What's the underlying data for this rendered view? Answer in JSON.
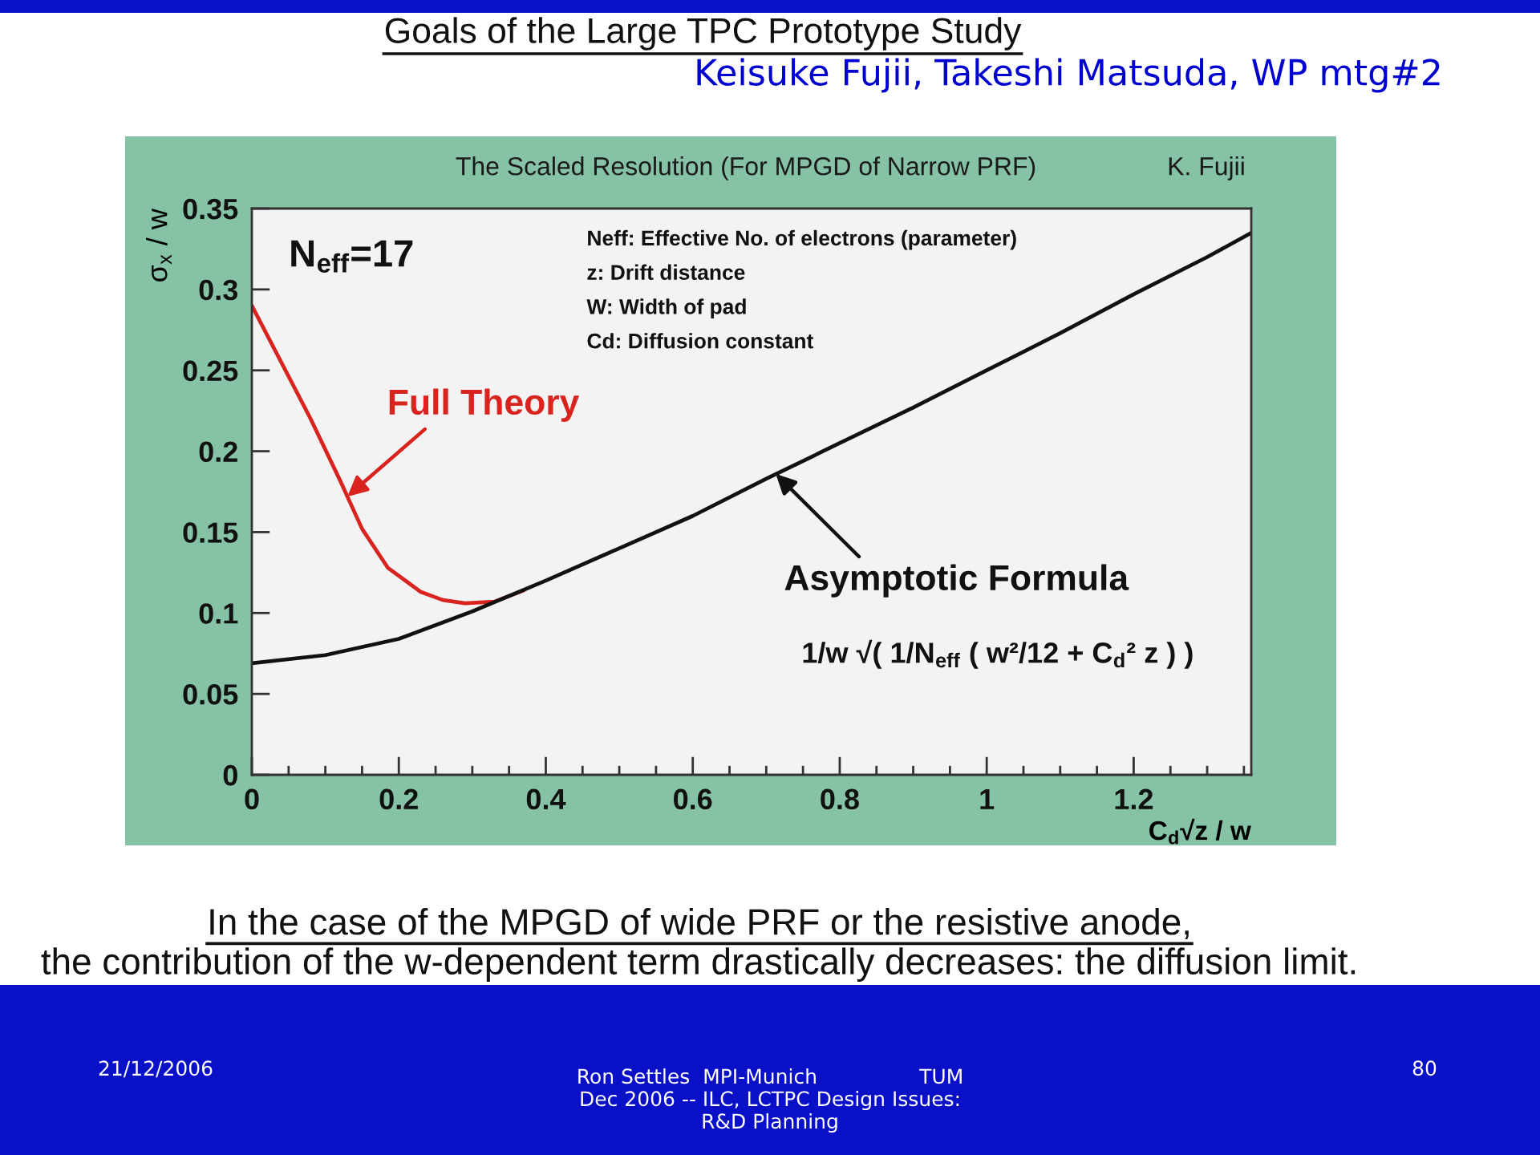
{
  "chart_data": {
    "type": "line",
    "title": "The Scaled Resolution (For MPGD of Narrow PRF)",
    "subtitle": "Keisuke Fujii, Takeshi Matsuda, WP mtg#2",
    "xlabel": "C$_{d}$√z / w",
    "ylabel": "σ$_{x}$ / w",
    "xlim": [
      0,
      1.36
    ],
    "ylim": [
      0,
      0.35
    ],
    "xticks": [
      0,
      0.2,
      0.4,
      0.6,
      0.8,
      1,
      1.2
    ],
    "yticks": [
      0,
      0.05,
      0.1,
      0.15,
      0.2,
      0.25,
      0.3,
      0.35
    ],
    "series": [
      {
        "color": "#d8231f",
        "x": [
          0,
          0.04,
          0.08,
          0.12,
          0.15,
          0.185,
          0.23,
          0.26,
          0.29,
          0.33,
          0.37
        ],
        "values": [
          0.29,
          0.255,
          0.22,
          0.182,
          0.152,
          0.128,
          0.113,
          0.108,
          0.106,
          0.107,
          0.114
        ]
      },
      {
        "color": "#111111",
        "x": [
          0,
          0.1,
          0.2,
          0.3,
          0.4,
          0.5,
          0.6,
          0.7,
          0.8,
          0.9,
          1,
          1.1,
          1.2,
          1.3,
          1.36
        ],
        "values": [
          0.069,
          0.074,
          0.084,
          0.101,
          0.12,
          0.14,
          0.16,
          0.183,
          0.205,
          0.227,
          0.25,
          0.273,
          0.297,
          0.32,
          0.335
        ]
      }
    ],
    "annotations": [
      "K. Fujii",
      "Goals of the Large TPC Prototype Study",
      "N$_{eff}$=17",
      "Neff: Effective No. of electrons (parameter)\nz: Drift distance\nW: Width of pad\nCd: Diffusion constant",
      "1/w √( 1/N$_{eff}$ ( w²/12 + C$_{d}$² z ) )",
      "In the case of the MPGD of wide PRF or the resistive anode,\nthe contribution of the w-dependent term drastically decreases: the diffusion limit.",
      "21/12/2006",
      "Ron Settles  MPI-Munich                TUM\nDec 2006 -- ILC, LCTPC Design Issues:\nR&D Planning",
      "80",
      {
        "text": "Full Theory",
        "x": 0.13,
        "y": 0.172
      },
      {
        "text": "Asymptotic Formula",
        "x": 0.713,
        "y": 0.186
      }
    ]
  }
}
